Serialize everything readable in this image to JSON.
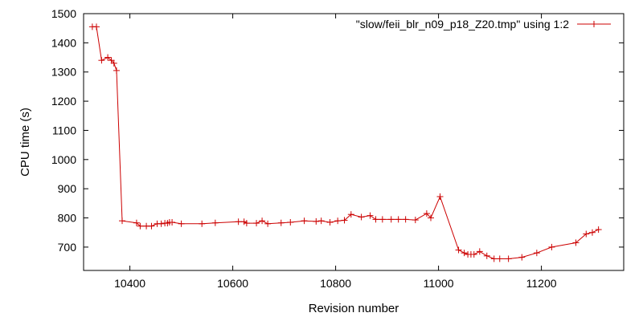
{
  "chart_data": {
    "type": "line",
    "xlabel": "Revision number",
    "ylabel": "CPU time (s)",
    "xlim": [
      10310,
      11360
    ],
    "ylim": [
      620,
      1500
    ],
    "x_ticks": [
      10400,
      10600,
      10800,
      11000,
      11200
    ],
    "y_ticks": [
      700,
      800,
      900,
      1000,
      1100,
      1200,
      1300,
      1400,
      1500
    ],
    "grid": false,
    "legend_position": "top-right",
    "marker": "plus",
    "series": [
      {
        "name": "\"slow/feii_blr_n09_p18_Z20.tmp\" using 1:2",
        "color": "#cc0000",
        "x": [
          10327,
          10335,
          10345,
          10357,
          10364,
          10369,
          10374,
          10385,
          10413,
          10420,
          10432,
          10442,
          10453,
          10461,
          10468,
          10473,
          10477,
          10482,
          10500,
          10540,
          10566,
          10611,
          10622,
          10627,
          10646,
          10657,
          10668,
          10694,
          10712,
          10739,
          10762,
          10772,
          10789,
          10804,
          10817,
          10830,
          10850,
          10867,
          10878,
          10891,
          10908,
          10922,
          10936,
          10955,
          10977,
          10985,
          11003,
          11039,
          11050,
          11057,
          11063,
          11069,
          11080,
          11094,
          11108,
          11119,
          11136,
          11162,
          11191,
          11220,
          11267,
          11287,
          11299,
          11311
        ],
        "values": [
          1455,
          1455,
          1340,
          1350,
          1340,
          1330,
          1305,
          790,
          783,
          772,
          772,
          772,
          780,
          780,
          782,
          782,
          785,
          785,
          780,
          780,
          783,
          787,
          787,
          782,
          782,
          790,
          780,
          783,
          785,
          790,
          788,
          790,
          785,
          790,
          792,
          812,
          803,
          808,
          795,
          795,
          795,
          795,
          795,
          793,
          815,
          800,
          873,
          690,
          680,
          675,
          675,
          675,
          685,
          670,
          660,
          660,
          660,
          665,
          680,
          700,
          715,
          745,
          750,
          760
        ]
      }
    ]
  }
}
